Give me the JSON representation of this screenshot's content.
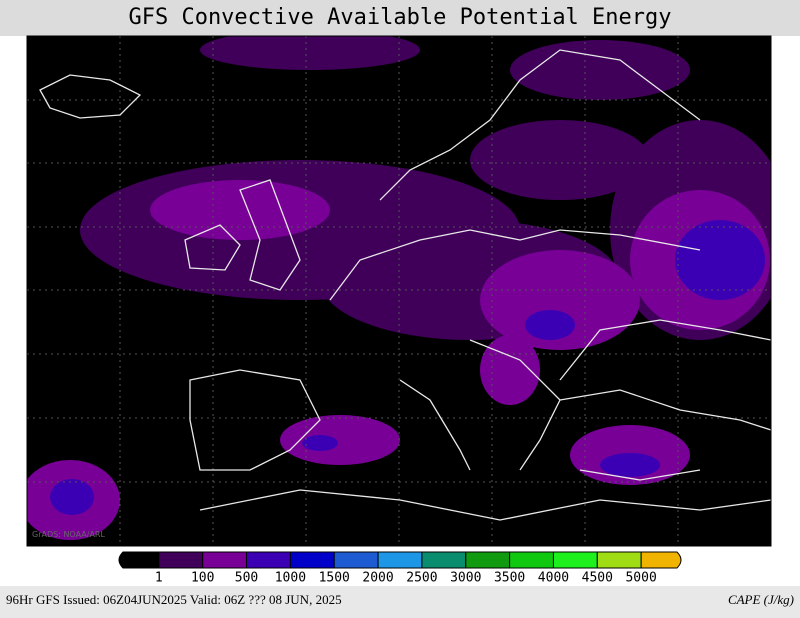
{
  "title": "GFS Convective Available Potential Energy",
  "watermark": "GrADS: NOAA/ARL",
  "colorbar": {
    "labels": [
      "1",
      "100",
      "500",
      "1000",
      "1500",
      "2000",
      "2500",
      "3000",
      "3500",
      "4000",
      "4500",
      "5000"
    ],
    "colors": [
      "#000000",
      "#40005a",
      "#780096",
      "#3c00b4",
      "#0000c8",
      "#1e5ad2",
      "#1e96e6",
      "#0a8c6e",
      "#109a10",
      "#10c810",
      "#1ef01e",
      "#a0dc14",
      "#f0b400"
    ]
  },
  "footer": {
    "left": "96Hr GFS Issued: 06Z04JUN2025 Valid: 06Z ??? 08 JUN, 2025",
    "right": "CAPE (J/kg)"
  }
}
